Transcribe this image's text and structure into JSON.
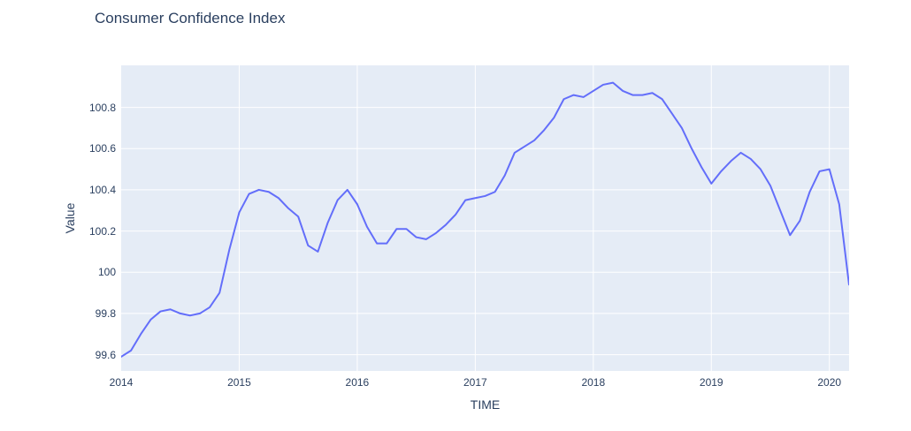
{
  "page": {
    "background_color": "#ffffff",
    "text_color": "#2a3f5f"
  },
  "chart_data": {
    "type": "line",
    "title": "Consumer Confidence Index",
    "xlabel": "TIME",
    "ylabel": "Value",
    "grid": true,
    "legend_position": "none",
    "plot_background_color": "#e5ecf6",
    "gridline_color": "#ffffff",
    "line_color": "#636efa",
    "x_range": [
      2014.0,
      2020.167
    ],
    "y_range": [
      99.521,
      101.004
    ],
    "x_tick_values": [
      2014,
      2015,
      2016,
      2017,
      2018,
      2019,
      2020
    ],
    "x_tick_labels": [
      "2014",
      "2015",
      "2016",
      "2017",
      "2018",
      "2019",
      "2020"
    ],
    "y_tick_values": [
      99.6,
      99.8,
      100,
      100.2,
      100.4,
      100.6,
      100.8
    ],
    "series": [
      {
        "name": "Consumer Confidence Index",
        "frequency": "monthly",
        "start": "2014-01",
        "end": "2020-03",
        "values": [
          99.59,
          99.62,
          99.7,
          99.77,
          99.81,
          99.82,
          99.8,
          99.79,
          99.8,
          99.83,
          99.9,
          100.11,
          100.29,
          100.38,
          100.4,
          100.39,
          100.36,
          100.31,
          100.27,
          100.13,
          100.1,
          100.24,
          100.35,
          100.4,
          100.33,
          100.22,
          100.14,
          100.14,
          100.21,
          100.21,
          100.17,
          100.16,
          100.19,
          100.23,
          100.28,
          100.35,
          100.36,
          100.37,
          100.39,
          100.47,
          100.58,
          100.61,
          100.64,
          100.69,
          100.75,
          100.84,
          100.86,
          100.85,
          100.88,
          100.91,
          100.92,
          100.88,
          100.86,
          100.86,
          100.87,
          100.84,
          100.77,
          100.7,
          100.6,
          100.51,
          100.43,
          100.49,
          100.54,
          100.58,
          100.55,
          100.5,
          100.42,
          100.3,
          100.18,
          100.25,
          100.39,
          100.49,
          100.5,
          100.33,
          99.94
        ]
      }
    ]
  }
}
